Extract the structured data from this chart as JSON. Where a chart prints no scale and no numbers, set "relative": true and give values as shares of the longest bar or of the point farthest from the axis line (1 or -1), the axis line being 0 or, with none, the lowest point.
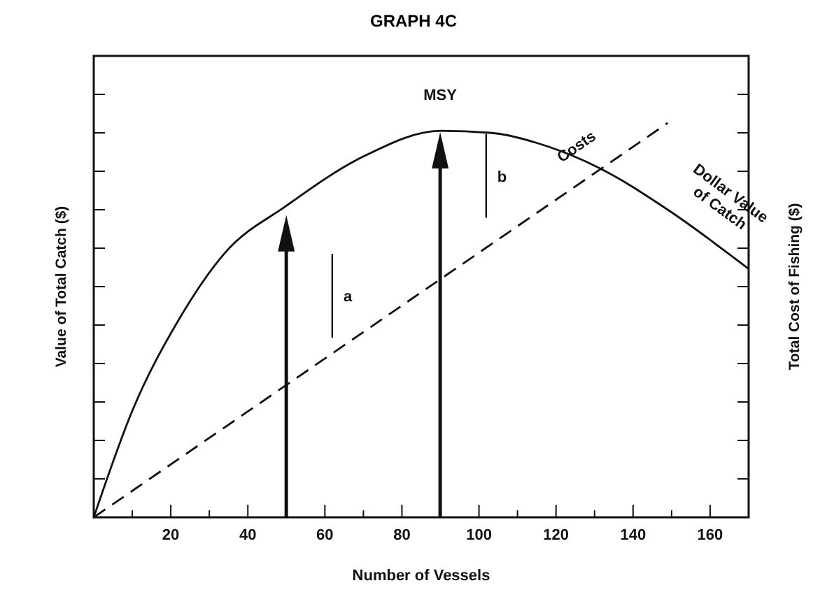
{
  "chart_data": {
    "type": "line",
    "title": "GRAPH 4C",
    "xlabel": "Number of Vessels",
    "ylabel": "Value of Total Catch ($)",
    "y2label": "Total Cost of Fishing ($)",
    "relative": true,
    "tick_labels": "x",
    "marker": "none",
    "xlim": [
      0,
      170
    ],
    "xticks": [
      {
        "value": 10,
        "label": null
      },
      20,
      {
        "value": 30,
        "label": null
      },
      40,
      {
        "value": 50,
        "label": null
      },
      60,
      {
        "value": 70,
        "label": null
      },
      80,
      {
        "value": 90,
        "label": null
      },
      100,
      {
        "value": 110,
        "label": null
      },
      120,
      {
        "value": 130,
        "label": null
      },
      140,
      {
        "value": 150,
        "label": null
      },
      160
    ],
    "series": [
      {
        "name": "Dollar Value of Catch",
        "color": "#111111",
        "line_style": "solid",
        "x": [
          0,
          10,
          22,
          34,
          50,
          70,
          90,
          103,
          118,
          131,
          149,
          170
        ],
        "values": [
          0,
          0.27,
          0.5,
          0.67,
          0.79,
          0.915,
          0.98,
          0.975,
          0.94,
          0.887,
          0.78,
          0.63
        ]
      },
      {
        "name": "Costs",
        "color": "#111111",
        "line_style": "dashed",
        "x": [
          0,
          149
        ],
        "values": [
          0,
          1
        ]
      }
    ],
    "annotations": [
      "MSY",
      "a",
      "b"
    ]
  }
}
